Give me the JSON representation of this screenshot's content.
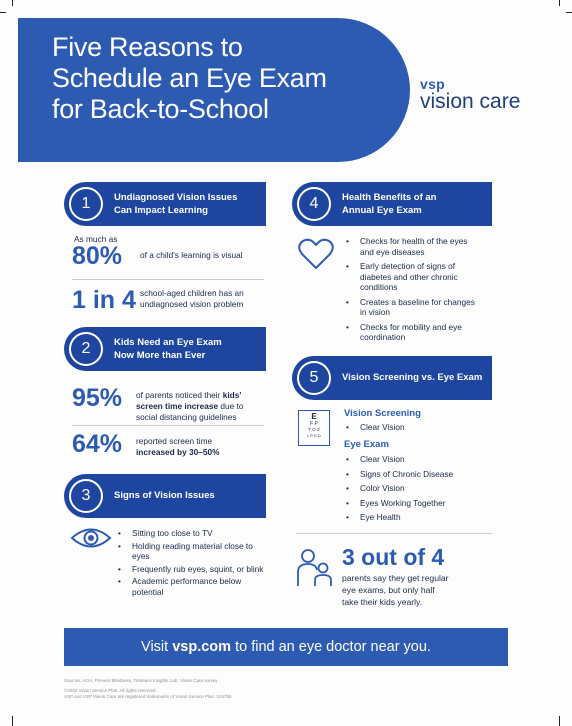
{
  "header": {
    "title_lines": [
      "Five Reasons to",
      "Schedule an Eye Exam",
      "for Back-to-School"
    ],
    "logo_top": "vsp",
    "logo_bottom": "vision care"
  },
  "sections": {
    "s1": {
      "number": "1",
      "title_l1": "Undiagnosed Vision Issues",
      "title_l2": "Can Impact Learning"
    },
    "s2": {
      "number": "2",
      "title_l1": "Kids Need an Eye Exam",
      "title_l2": "Now More than Ever"
    },
    "s3": {
      "number": "3",
      "title_l1": "Signs of Vision Issues"
    },
    "s4": {
      "number": "4",
      "title_l1": "Health Benefits of an",
      "title_l2": "Annual Eye Exam"
    },
    "s5": {
      "number": "5",
      "title_l1": "Vision Screening vs. Eye Exam"
    }
  },
  "s1_stats": {
    "prefix": "As much as",
    "stat1_value": "80%",
    "stat1_text": "of a child's learning is visual",
    "stat2_value": "1 in 4",
    "stat2_text_l1": "school-aged children has an",
    "stat2_text_l2": "undiagnosed vision problem"
  },
  "s2_stats": {
    "stat1_value": "95%",
    "stat1_text_a": "of parents noticed their",
    "stat1_text_b": "kids'",
    "stat1_text_c": "screen time increase",
    "stat1_text_d": "due to",
    "stat1_text_e": "social distancing guidelines",
    "stat2_value": "64%",
    "stat2_text_l1": "reported screen time",
    "stat2_text_l2": "increased by 30–50%"
  },
  "s3_bullets": [
    "Sitting too close to TV",
    "Holding reading material close to eyes",
    "Frequently rub eyes, squint, or blink",
    "Academic performance below potential"
  ],
  "s4_bullets": [
    "Checks for health of the eyes and eye diseases",
    "Early detection of signs of diabetes and other chronic conditions",
    "Creates a baseline for changes in vision",
    "Checks for mobility and eye coordination"
  ],
  "s5": {
    "screening_label": "Vision Screening",
    "screening_items": [
      "Clear Vision"
    ],
    "exam_label": "Eye Exam",
    "exam_items": [
      "Clear Vision",
      "Signs of Chronic Disease",
      "Color Vision",
      "Eyes Working Together",
      "Eye Health"
    ],
    "chart_rows": [
      "E",
      "F P",
      "T O Z",
      "L P E D"
    ]
  },
  "parents": {
    "value": "3 out of 4",
    "text_l1": "parents say they get regular",
    "text_l2": "eye exams, but only half",
    "text_l3": "take their kids yearly."
  },
  "cta": {
    "prefix": "Visit",
    "link": "vsp.com",
    "suffix": "to find an eye doctor near you."
  },
  "footer": {
    "sources": "Sources: AOA, Prevent Blindness, Tinbeans Insights Lab, Vision Care survey",
    "copyright": "©2022 Vision Service Plan. All rights reserved.",
    "trademark": "VSP and VSP Vision Care are registered trademarks of Vision Service Plan. 104755"
  },
  "colors": {
    "primary": "#2d5bb1",
    "dark_blue": "#1e46a0",
    "text": "#1b2a4a"
  },
  "icons": [
    "heart-icon",
    "eye-icon",
    "eye-chart-icon",
    "parent-child-icon"
  ]
}
